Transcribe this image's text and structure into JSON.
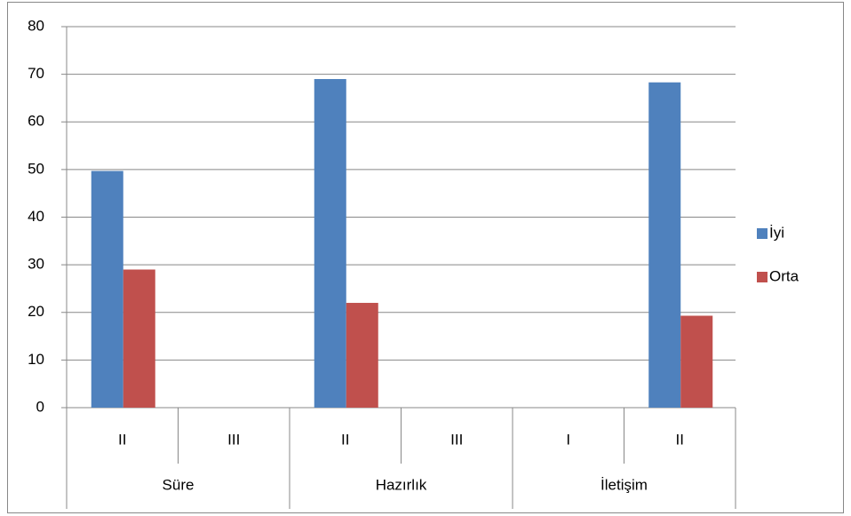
{
  "chart_data": {
    "type": "bar",
    "groups": [
      {
        "name": "Süre",
        "categories": [
          "II",
          "III"
        ]
      },
      {
        "name": "Hazırlık",
        "categories": [
          "II",
          "III"
        ]
      },
      {
        "name": "İletişim",
        "categories": [
          "I",
          "II"
        ]
      }
    ],
    "series": [
      {
        "name": "İyi",
        "color": "#4f81bd",
        "values": [
          49.7,
          null,
          69,
          null,
          null,
          68.3
        ]
      },
      {
        "name": "Orta",
        "color": "#c0504d",
        "values": [
          29,
          null,
          22,
          null,
          null,
          19.3
        ]
      }
    ],
    "ylim": [
      0,
      80
    ],
    "yticks": [
      0,
      10,
      20,
      30,
      40,
      50,
      60,
      70,
      80
    ],
    "grid": true,
    "legend": "right"
  }
}
